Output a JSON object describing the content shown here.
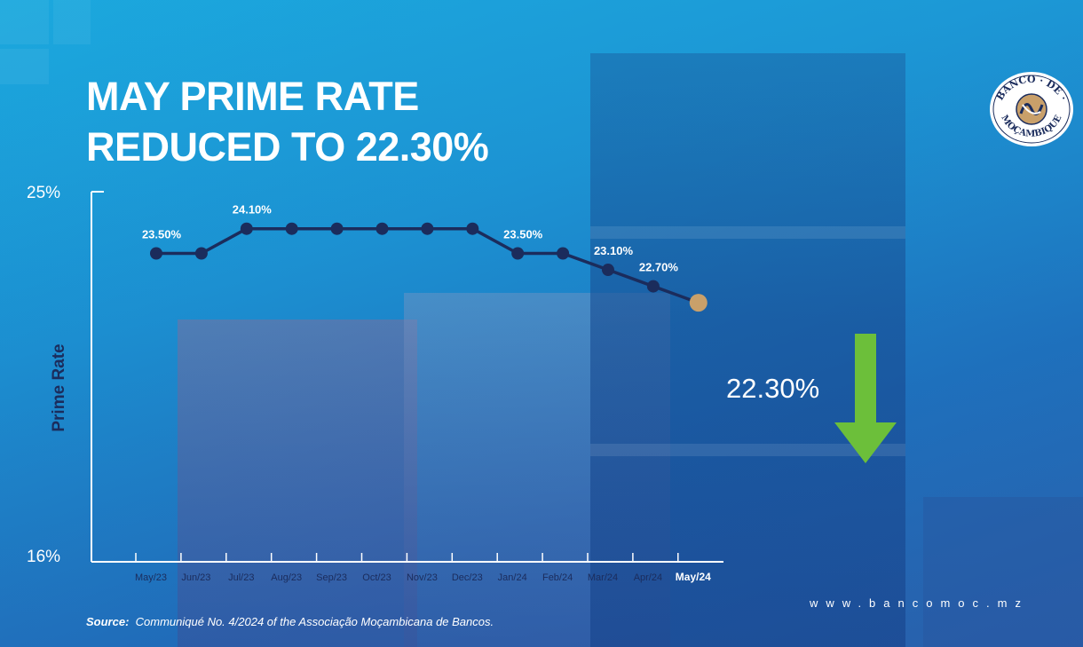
{
  "headline": {
    "line1": "MAY PRIME RATE",
    "line2": "REDUCED TO 22.30%"
  },
  "logo": {
    "text_top": "BANCO · DE ·",
    "text_bottom": "MOÇAMBIQUE",
    "icon": "bank-seal-icon"
  },
  "highlight": {
    "value_label": "22.30%",
    "arrow_icon": "down-arrow-icon"
  },
  "source": {
    "label": "Source:",
    "text": "Communiqué No. 4/2024 of the Associação Moçambicana de Bancos."
  },
  "website": "www.bancomoc.mz",
  "colors": {
    "line": "#1b2c5c",
    "highlight_marker": "#c9a06a",
    "arrow": "#6cbf3a",
    "text": "#ffffff"
  },
  "chart_data": {
    "type": "line",
    "ylabel": "Prime Rate",
    "ylim": [
      16,
      25
    ],
    "ytick_labels": [
      "16%",
      "25%"
    ],
    "categories": [
      "May/23",
      "Jun/23",
      "Jul/23",
      "Aug/23",
      "Sep/23",
      "Oct/23",
      "Nov/23",
      "Dec/23",
      "Jan/24",
      "Feb/24",
      "Mar/24",
      "Apr/24",
      "May/24"
    ],
    "series": [
      {
        "values": [
          23.5,
          23.5,
          24.1,
          24.1,
          24.1,
          24.1,
          24.1,
          24.1,
          23.5,
          23.5,
          23.1,
          22.7,
          22.3
        ]
      }
    ],
    "data_labels": [
      {
        "index": 0,
        "text": "23.50%"
      },
      {
        "index": 2,
        "text": "24.10%"
      },
      {
        "index": 8,
        "text": "23.50%"
      },
      {
        "index": 10,
        "text": "23.10%"
      },
      {
        "index": 11,
        "text": "22.70%"
      }
    ],
    "highlight_index": 12,
    "grid": false
  }
}
